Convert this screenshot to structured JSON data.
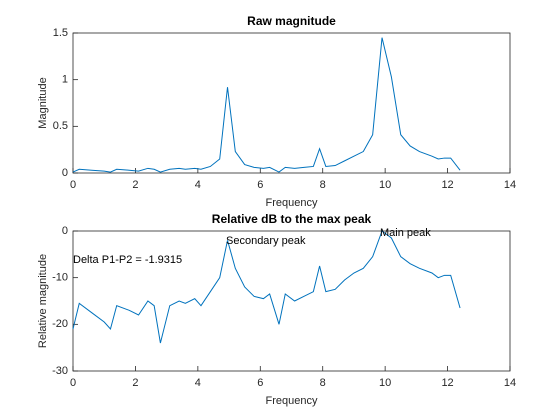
{
  "chart_data": [
    {
      "type": "line",
      "title": "Raw magnitude",
      "xlabel": "Frequency",
      "ylabel": "Magnitude",
      "x": [
        0,
        0.2,
        0.6,
        1.0,
        1.2,
        1.4,
        1.8,
        2.1,
        2.4,
        2.6,
        2.8,
        3.1,
        3.4,
        3.6,
        3.9,
        4.1,
        4.4,
        4.7,
        4.95,
        5.2,
        5.5,
        5.8,
        6.1,
        6.3,
        6.6,
        6.8,
        7.1,
        7.4,
        7.7,
        7.9,
        8.1,
        8.4,
        8.7,
        9.0,
        9.3,
        9.6,
        9.9,
        10.2,
        10.5,
        10.8,
        11.1,
        11.5,
        11.7,
        11.9,
        12.1,
        12.4
      ],
      "series": [
        {
          "color": "#0072bd",
          "values": [
            0.01,
            0.04,
            0.03,
            0.02,
            0.01,
            0.04,
            0.03,
            0.02,
            0.05,
            0.04,
            0.01,
            0.04,
            0.05,
            0.04,
            0.05,
            0.04,
            0.07,
            0.15,
            0.92,
            0.23,
            0.09,
            0.06,
            0.05,
            0.06,
            0.01,
            0.06,
            0.05,
            0.06,
            0.07,
            0.26,
            0.07,
            0.08,
            0.13,
            0.18,
            0.23,
            0.41,
            1.45,
            1.03,
            0.41,
            0.29,
            0.23,
            0.18,
            0.15,
            0.16,
            0.16,
            0.03
          ]
        }
      ],
      "xlim": [
        0,
        14
      ],
      "xticks": [
        0,
        2,
        4,
        6,
        8,
        10,
        12,
        14
      ],
      "ylim": [
        0,
        1.5
      ],
      "yticks": [
        0,
        0.5,
        1,
        1.5
      ]
    },
    {
      "type": "line",
      "title": "Relative dB to the max peak",
      "xlabel": "Frequency",
      "ylabel": "Relative magnitude",
      "annotations": [
        "Delta P1-P2 = -1.9315",
        "Secondary peak",
        "Main peak"
      ],
      "x": [
        0,
        0.2,
        0.6,
        1.0,
        1.2,
        1.4,
        1.8,
        2.1,
        2.4,
        2.6,
        2.8,
        3.1,
        3.4,
        3.6,
        3.9,
        4.1,
        4.4,
        4.7,
        4.95,
        5.2,
        5.5,
        5.8,
        6.1,
        6.3,
        6.6,
        6.8,
        7.1,
        7.4,
        7.7,
        7.9,
        8.1,
        8.4,
        8.7,
        9.0,
        9.3,
        9.6,
        9.9,
        10.2,
        10.5,
        10.8,
        11.1,
        11.5,
        11.7,
        11.9,
        12.1,
        12.4
      ],
      "series": [
        {
          "color": "#0072bd",
          "values": [
            -21,
            -15.5,
            -17.5,
            -19.5,
            -21,
            -16,
            -17,
            -18,
            -15,
            -16,
            -24,
            -16,
            -15,
            -15.5,
            -14.5,
            -16,
            -13,
            -10,
            -2,
            -8,
            -12,
            -14,
            -14.5,
            -13.5,
            -20,
            -13.5,
            -15,
            -14,
            -13,
            -7.5,
            -13,
            -12.5,
            -10.5,
            -9,
            -8,
            -5.5,
            0,
            -1.5,
            -5.5,
            -7,
            -8,
            -9,
            -10,
            -9.5,
            -9.5,
            -16.5
          ]
        }
      ],
      "xlim": [
        0,
        14
      ],
      "xticks": [
        0,
        2,
        4,
        6,
        8,
        10,
        12,
        14
      ],
      "ylim": [
        -30,
        0
      ],
      "yticks": [
        -30,
        -20,
        -10,
        0
      ]
    }
  ]
}
